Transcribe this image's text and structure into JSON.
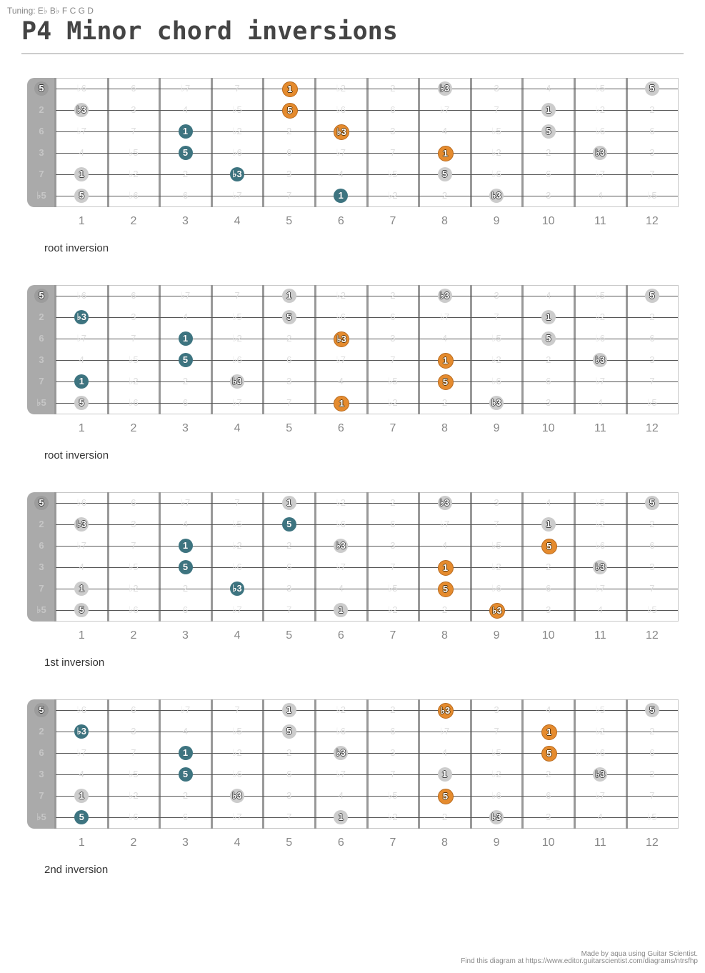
{
  "header": {
    "tuning": "Tuning: E♭ B♭ F C G D",
    "title": "P4 Minor chord inversions"
  },
  "colors": {
    "teal": "#3d7480",
    "orange": "#e58b2e",
    "gray_note": "#cccccc",
    "nut": "#aaaaaa",
    "fret": "#999999",
    "string": "#555555"
  },
  "fret_numbers": [
    "1",
    "2",
    "3",
    "4",
    "5",
    "6",
    "7",
    "8",
    "9",
    "10",
    "11",
    "12"
  ],
  "string_intervals": [
    [
      "5",
      "♭6",
      "6",
      "♭7",
      "7",
      "1",
      "♭2",
      "2",
      "♭3",
      "3",
      "4",
      "♭5",
      "5"
    ],
    [
      "2",
      "♭3",
      "3",
      "4",
      "♭5",
      "5",
      "♭6",
      "6",
      "♭7",
      "7",
      "1",
      "♭2",
      "2"
    ],
    [
      "6",
      "♭7",
      "7",
      "1",
      "♭2",
      "2",
      "♭3",
      "3",
      "4",
      "♭5",
      "5",
      "♭6",
      "6"
    ],
    [
      "3",
      "4",
      "♭5",
      "5",
      "♭6",
      "6",
      "♭7",
      "7",
      "1",
      "♭2",
      "2",
      "♭3",
      "3"
    ],
    [
      "7",
      "1",
      "♭2",
      "2",
      "♭3",
      "3",
      "4",
      "♭5",
      "5",
      "♭6",
      "6",
      "♭7",
      "7"
    ],
    [
      "♭5",
      "5",
      "♭6",
      "6",
      "♭7",
      "7",
      "1",
      "♭2",
      "2",
      "♭3",
      "3",
      "4",
      "♭5"
    ]
  ],
  "diagrams": [
    {
      "caption": "root inversion",
      "notes": [
        {
          "string": 0,
          "fret": 0,
          "label": "5",
          "color": "open"
        },
        {
          "string": 0,
          "fret": 5,
          "label": "1",
          "color": "orange"
        },
        {
          "string": 0,
          "fret": 8,
          "label": "♭3",
          "color": "gray"
        },
        {
          "string": 0,
          "fret": 12,
          "label": "5",
          "color": "gray"
        },
        {
          "string": 1,
          "fret": 1,
          "label": "♭3",
          "color": "gray"
        },
        {
          "string": 1,
          "fret": 5,
          "label": "5",
          "color": "orange"
        },
        {
          "string": 1,
          "fret": 10,
          "label": "1",
          "color": "gray"
        },
        {
          "string": 2,
          "fret": 3,
          "label": "1",
          "color": "teal"
        },
        {
          "string": 2,
          "fret": 6,
          "label": "♭3",
          "color": "orange"
        },
        {
          "string": 2,
          "fret": 10,
          "label": "5",
          "color": "gray"
        },
        {
          "string": 3,
          "fret": 3,
          "label": "5",
          "color": "teal"
        },
        {
          "string": 3,
          "fret": 8,
          "label": "1",
          "color": "orange"
        },
        {
          "string": 3,
          "fret": 11,
          "label": "♭3",
          "color": "gray"
        },
        {
          "string": 4,
          "fret": 1,
          "label": "1",
          "color": "gray"
        },
        {
          "string": 4,
          "fret": 4,
          "label": "♭3",
          "color": "teal"
        },
        {
          "string": 4,
          "fret": 8,
          "label": "5",
          "color": "gray"
        },
        {
          "string": 5,
          "fret": 1,
          "label": "5",
          "color": "gray"
        },
        {
          "string": 5,
          "fret": 6,
          "label": "1",
          "color": "teal"
        },
        {
          "string": 5,
          "fret": 9,
          "label": "♭3",
          "color": "gray"
        }
      ]
    },
    {
      "caption": "root inversion",
      "notes": [
        {
          "string": 0,
          "fret": 0,
          "label": "5",
          "color": "open"
        },
        {
          "string": 0,
          "fret": 5,
          "label": "1",
          "color": "gray"
        },
        {
          "string": 0,
          "fret": 8,
          "label": "♭3",
          "color": "gray"
        },
        {
          "string": 0,
          "fret": 12,
          "label": "5",
          "color": "gray"
        },
        {
          "string": 1,
          "fret": 1,
          "label": "♭3",
          "color": "teal"
        },
        {
          "string": 1,
          "fret": 5,
          "label": "5",
          "color": "gray"
        },
        {
          "string": 1,
          "fret": 10,
          "label": "1",
          "color": "gray"
        },
        {
          "string": 2,
          "fret": 3,
          "label": "1",
          "color": "teal"
        },
        {
          "string": 2,
          "fret": 6,
          "label": "♭3",
          "color": "orange"
        },
        {
          "string": 2,
          "fret": 10,
          "label": "5",
          "color": "gray"
        },
        {
          "string": 3,
          "fret": 3,
          "label": "5",
          "color": "teal"
        },
        {
          "string": 3,
          "fret": 8,
          "label": "1",
          "color": "orange"
        },
        {
          "string": 3,
          "fret": 11,
          "label": "♭3",
          "color": "gray"
        },
        {
          "string": 4,
          "fret": 1,
          "label": "1",
          "color": "teal"
        },
        {
          "string": 4,
          "fret": 4,
          "label": "♭3",
          "color": "gray"
        },
        {
          "string": 4,
          "fret": 8,
          "label": "5",
          "color": "orange"
        },
        {
          "string": 5,
          "fret": 1,
          "label": "5",
          "color": "gray"
        },
        {
          "string": 5,
          "fret": 6,
          "label": "1",
          "color": "orange"
        },
        {
          "string": 5,
          "fret": 9,
          "label": "♭3",
          "color": "gray"
        }
      ]
    },
    {
      "caption": "1st inversion",
      "notes": [
        {
          "string": 0,
          "fret": 0,
          "label": "5",
          "color": "open"
        },
        {
          "string": 0,
          "fret": 5,
          "label": "1",
          "color": "gray"
        },
        {
          "string": 0,
          "fret": 8,
          "label": "♭3",
          "color": "gray"
        },
        {
          "string": 0,
          "fret": 12,
          "label": "5",
          "color": "gray"
        },
        {
          "string": 1,
          "fret": 1,
          "label": "♭3",
          "color": "gray"
        },
        {
          "string": 1,
          "fret": 5,
          "label": "5",
          "color": "teal"
        },
        {
          "string": 1,
          "fret": 10,
          "label": "1",
          "color": "gray"
        },
        {
          "string": 2,
          "fret": 3,
          "label": "1",
          "color": "teal"
        },
        {
          "string": 2,
          "fret": 6,
          "label": "♭3",
          "color": "gray"
        },
        {
          "string": 2,
          "fret": 10,
          "label": "5",
          "color": "orange"
        },
        {
          "string": 3,
          "fret": 3,
          "label": "5",
          "color": "teal"
        },
        {
          "string": 3,
          "fret": 8,
          "label": "1",
          "color": "orange"
        },
        {
          "string": 3,
          "fret": 11,
          "label": "♭3",
          "color": "gray"
        },
        {
          "string": 4,
          "fret": 1,
          "label": "1",
          "color": "gray"
        },
        {
          "string": 4,
          "fret": 4,
          "label": "♭3",
          "color": "teal"
        },
        {
          "string": 4,
          "fret": 8,
          "label": "5",
          "color": "orange"
        },
        {
          "string": 5,
          "fret": 1,
          "label": "5",
          "color": "gray"
        },
        {
          "string": 5,
          "fret": 6,
          "label": "1",
          "color": "gray"
        },
        {
          "string": 5,
          "fret": 9,
          "label": "♭3",
          "color": "orange"
        }
      ]
    },
    {
      "caption": "2nd inversion",
      "notes": [
        {
          "string": 0,
          "fret": 0,
          "label": "5",
          "color": "open"
        },
        {
          "string": 0,
          "fret": 5,
          "label": "1",
          "color": "gray"
        },
        {
          "string": 0,
          "fret": 8,
          "label": "♭3",
          "color": "orange"
        },
        {
          "string": 0,
          "fret": 12,
          "label": "5",
          "color": "gray"
        },
        {
          "string": 1,
          "fret": 1,
          "label": "♭3",
          "color": "teal"
        },
        {
          "string": 1,
          "fret": 5,
          "label": "5",
          "color": "gray"
        },
        {
          "string": 1,
          "fret": 10,
          "label": "1",
          "color": "orange"
        },
        {
          "string": 2,
          "fret": 3,
          "label": "1",
          "color": "teal"
        },
        {
          "string": 2,
          "fret": 6,
          "label": "♭3",
          "color": "gray"
        },
        {
          "string": 2,
          "fret": 10,
          "label": "5",
          "color": "orange"
        },
        {
          "string": 3,
          "fret": 3,
          "label": "5",
          "color": "teal"
        },
        {
          "string": 3,
          "fret": 8,
          "label": "1",
          "color": "gray"
        },
        {
          "string": 3,
          "fret": 11,
          "label": "♭3",
          "color": "gray"
        },
        {
          "string": 4,
          "fret": 1,
          "label": "1",
          "color": "gray"
        },
        {
          "string": 4,
          "fret": 4,
          "label": "♭3",
          "color": "gray"
        },
        {
          "string": 4,
          "fret": 8,
          "label": "5",
          "color": "orange"
        },
        {
          "string": 5,
          "fret": 1,
          "label": "5",
          "color": "teal"
        },
        {
          "string": 5,
          "fret": 6,
          "label": "1",
          "color": "gray"
        },
        {
          "string": 5,
          "fret": 9,
          "label": "♭3",
          "color": "gray"
        }
      ]
    }
  ],
  "footer": {
    "line1": "Made by aqua using Guitar Scientist.",
    "line2": "Find this diagram at https://www.editor.guitarscientist.com/diagrams/ntrsfhp"
  }
}
